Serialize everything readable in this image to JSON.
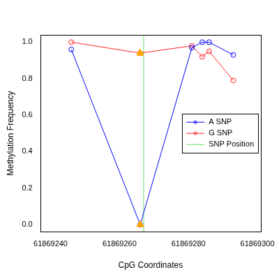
{
  "chart_data": {
    "type": "line",
    "x_label": "CpG Coordinates",
    "y_label": "Methylation Frequency",
    "xlim": [
      61869237,
      61869301
    ],
    "xticks": [
      61869240,
      61869260,
      61869280,
      61869300
    ],
    "ylim": [
      -0.04,
      1.04
    ],
    "yticks": [
      {
        "value": 0,
        "label": "0.0"
      },
      0.2,
      0.4,
      0.6,
      0.8,
      {
        "value": 1,
        "label": "1.0"
      }
    ],
    "grid": false,
    "legend": "right",
    "series": [
      {
        "name": "A SNP",
        "color": "#0000ff",
        "marker": "circle",
        "line_style": "solid",
        "x": [
          61869246,
          61869266,
          61869281,
          61869284,
          61869286,
          61869293
        ],
        "values": [
          0.96,
          0.0,
          0.97,
          1.0,
          1.0,
          0.93
        ]
      },
      {
        "name": "G SNP",
        "color": "#ff2020",
        "marker": "circle",
        "line_style": "solid",
        "x": [
          61869246,
          61869266,
          61869281,
          61869284,
          61869286,
          61869293
        ],
        "values": [
          1.0,
          0.94,
          0.98,
          0.92,
          0.95,
          0.79
        ]
      },
      {
        "name": "SNP Position",
        "color": "#66e066",
        "marker": "none",
        "line_style": "solid",
        "x": [
          61869267,
          61869267
        ],
        "values": [
          -0.04,
          1.04
        ]
      },
      {
        "color": "#ffa500",
        "marker": "triangle",
        "line_style": "none",
        "x": [
          61869266,
          61869266
        ],
        "values": [
          0.0,
          0.94
        ]
      }
    ]
  }
}
